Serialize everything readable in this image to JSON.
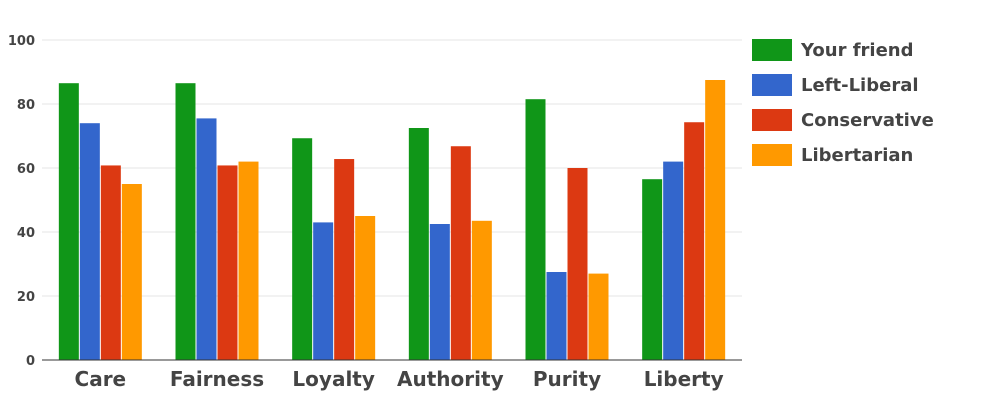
{
  "chart_data": {
    "type": "bar",
    "categories": [
      "Care",
      "Fairness",
      "Loyalty",
      "Authority",
      "Purity",
      "Liberty"
    ],
    "series": [
      {
        "name": "Your friend",
        "color": "#109618",
        "values": [
          86.5,
          86.5,
          69.3,
          72.5,
          81.5,
          56.5
        ]
      },
      {
        "name": "Left-Liberal",
        "color": "#3366cc",
        "values": [
          74.0,
          75.5,
          43.0,
          42.5,
          27.5,
          62.0
        ]
      },
      {
        "name": "Conservative",
        "color": "#dc3912",
        "values": [
          60.8,
          60.8,
          62.8,
          66.8,
          60.0,
          74.3
        ]
      },
      {
        "name": "Libertarian",
        "color": "#ff9900",
        "values": [
          55.0,
          62.0,
          45.0,
          43.5,
          27.0,
          87.5
        ]
      }
    ],
    "yticks": [
      0,
      20,
      40,
      60,
      80,
      100
    ],
    "ylim": [
      0,
      100
    ],
    "legend_position": "right",
    "grid": true
  }
}
